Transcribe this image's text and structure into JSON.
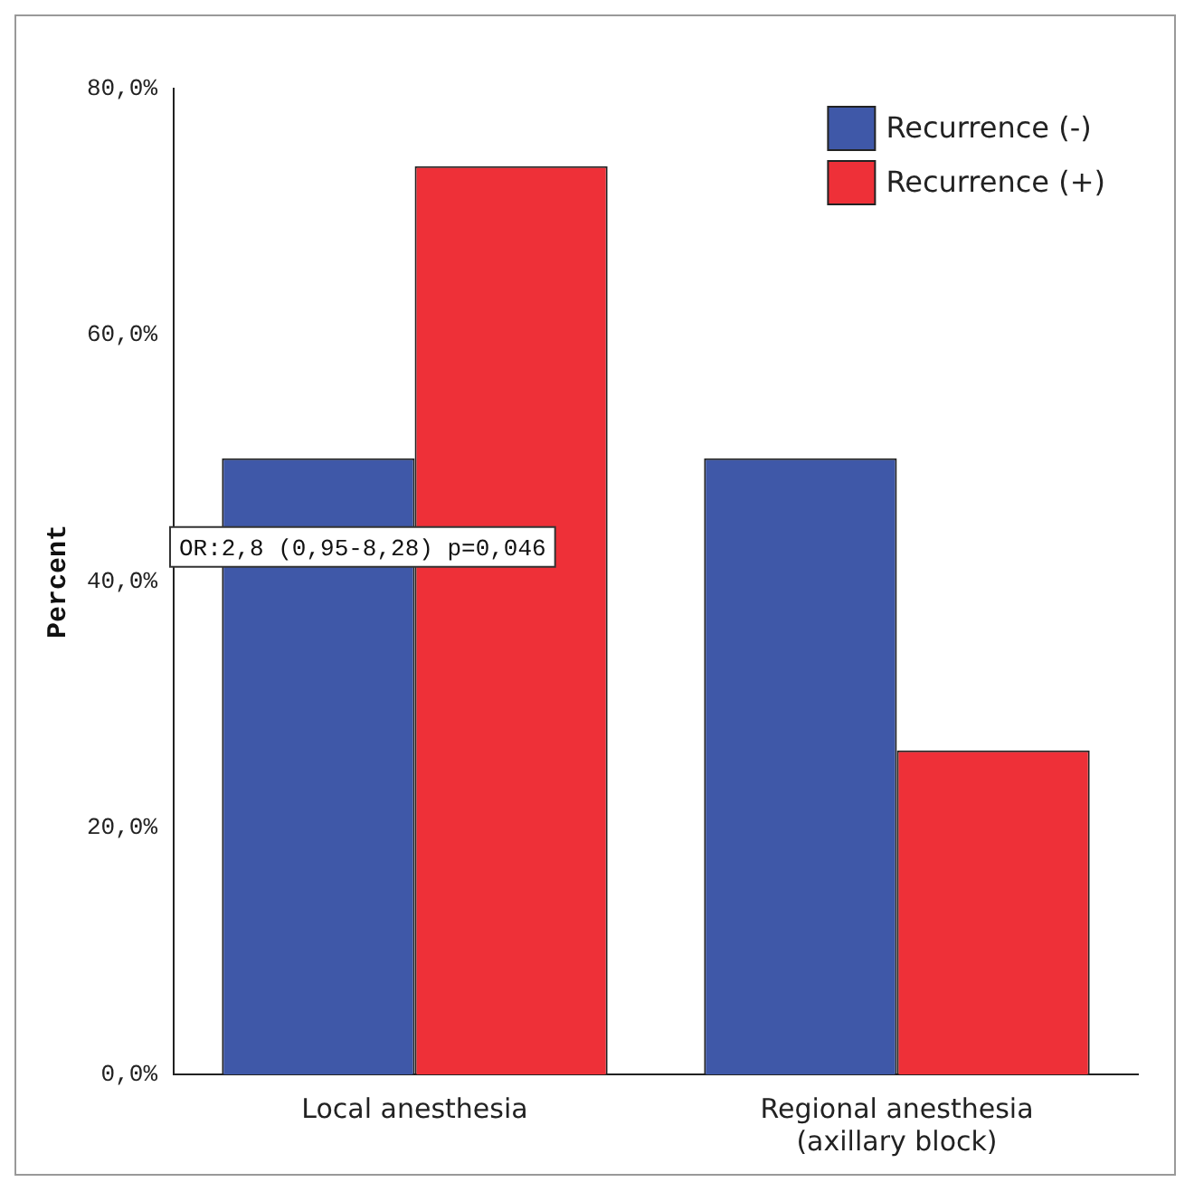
{
  "chart_data": {
    "type": "bar",
    "ylabel": "Percent",
    "categories": [
      "Local anesthesia",
      "Regional anesthesia\n(axillary block)"
    ],
    "series": [
      {
        "name": "Recurrence (-)",
        "color": "#3f58a8",
        "values": [
          50,
          50
        ]
      },
      {
        "name": "Recurrence (+)",
        "color": "#ee3038",
        "values": [
          73.7,
          26.3
        ]
      }
    ],
    "ylim": [
      0,
      80
    ],
    "yticks": [
      {
        "value": 0,
        "label": "0,0%"
      },
      {
        "value": 20,
        "label": "20,0%"
      },
      {
        "value": 40,
        "label": "40,0%"
      },
      {
        "value": 60,
        "label": "60,0%"
      },
      {
        "value": 80,
        "label": "80,0%"
      }
    ],
    "grid": false,
    "legend": "top right",
    "annotations": [
      "OR:2,8 (0,95-8,28) p=0,046"
    ]
  }
}
